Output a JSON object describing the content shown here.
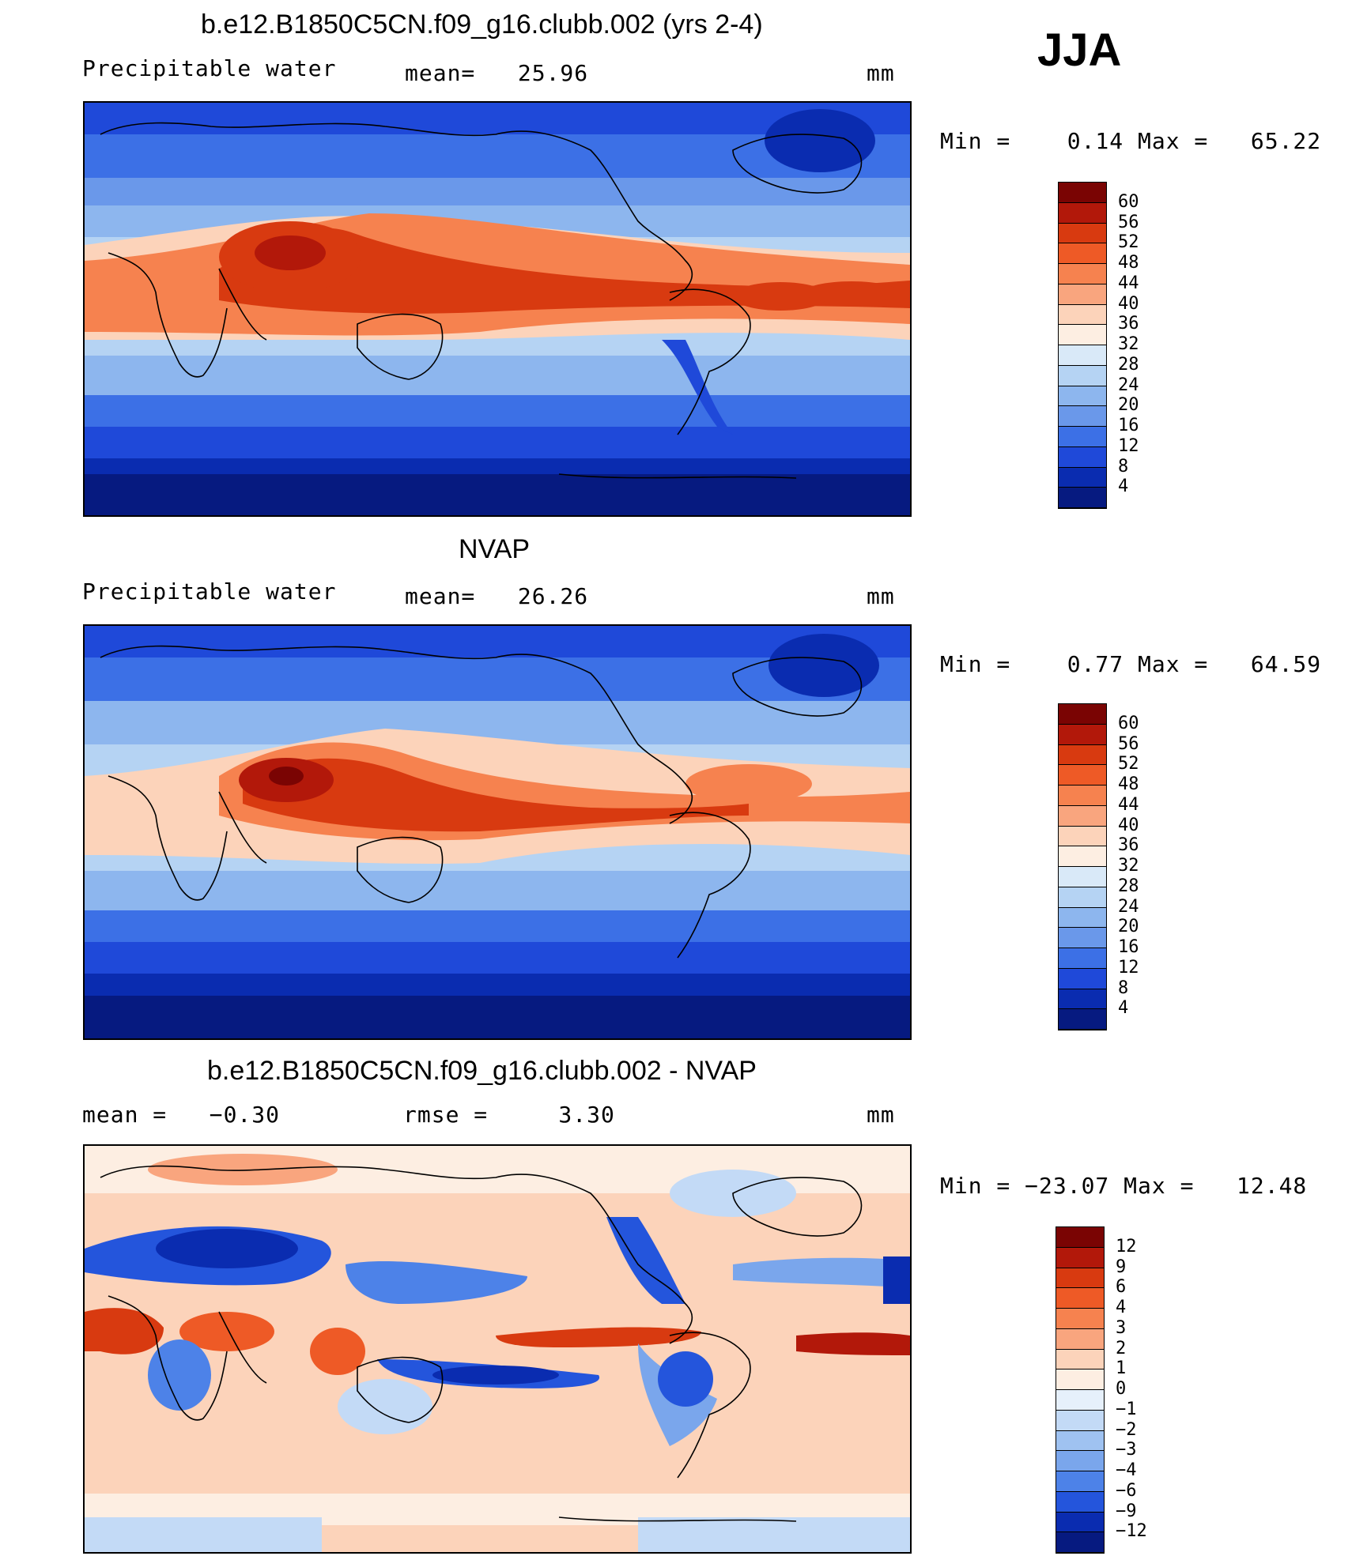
{
  "season": "JJA",
  "panels": [
    {
      "id": "model",
      "title": "b.e12.B1850C5CN.f09_g16.clubb.002 (yrs 2-4)",
      "left_label": "Precipitable water",
      "center_label": "mean=   25.96",
      "units": "mm",
      "minmax": "Min =    0.14 Max =   65.22",
      "colorbar": {
        "levels": [
          "60",
          "56",
          "52",
          "48",
          "44",
          "40",
          "36",
          "32",
          "28",
          "24",
          "20",
          "16",
          "12",
          "8",
          "4"
        ],
        "colors": [
          "#7a0403",
          "#b2180a",
          "#d83a10",
          "#ee5a26",
          "#f6824f",
          "#f9a57e",
          "#fcd3ba",
          "#fdeee2",
          "#d9e9f8",
          "#b5d3f3",
          "#8db6ee",
          "#6a98ea",
          "#3c70e6",
          "#1f49d9",
          "#0a2cb0",
          "#061a80"
        ]
      }
    },
    {
      "id": "obs",
      "title": "NVAP",
      "left_label": "Precipitable water",
      "center_label": "mean=   26.26",
      "units": "mm",
      "minmax": "Min =    0.77 Max =   64.59",
      "colorbar": {
        "levels": [
          "60",
          "56",
          "52",
          "48",
          "44",
          "40",
          "36",
          "32",
          "28",
          "24",
          "20",
          "16",
          "12",
          "8",
          "4"
        ],
        "colors": [
          "#7a0403",
          "#b2180a",
          "#d83a10",
          "#ee5a26",
          "#f6824f",
          "#f9a57e",
          "#fcd3ba",
          "#fdeee2",
          "#d9e9f8",
          "#b5d3f3",
          "#8db6ee",
          "#6a98ea",
          "#3c70e6",
          "#1f49d9",
          "#0a2cb0",
          "#061a80"
        ]
      }
    },
    {
      "id": "diff",
      "title": "b.e12.B1850C5CN.f09_g16.clubb.002 - NVAP",
      "left_label": "mean =   −0.30",
      "center_label": "rmse =     3.30",
      "units": "mm",
      "minmax": "Min = −23.07 Max =   12.48",
      "colorbar": {
        "levels": [
          "12",
          "9",
          "6",
          "4",
          "3",
          "2",
          "1",
          "0",
          "−1",
          "−2",
          "−3",
          "−4",
          "−6",
          "−9",
          "−12"
        ],
        "colors": [
          "#7a0403",
          "#b2180a",
          "#d83a10",
          "#ee5a26",
          "#f6824f",
          "#f9a57e",
          "#fcd3ba",
          "#fdeee2",
          "#e6f0fb",
          "#c3daf6",
          "#9fc2f1",
          "#7aa6ec",
          "#4d82e8",
          "#2455dc",
          "#0a2cb0",
          "#061a80"
        ]
      }
    }
  ]
}
